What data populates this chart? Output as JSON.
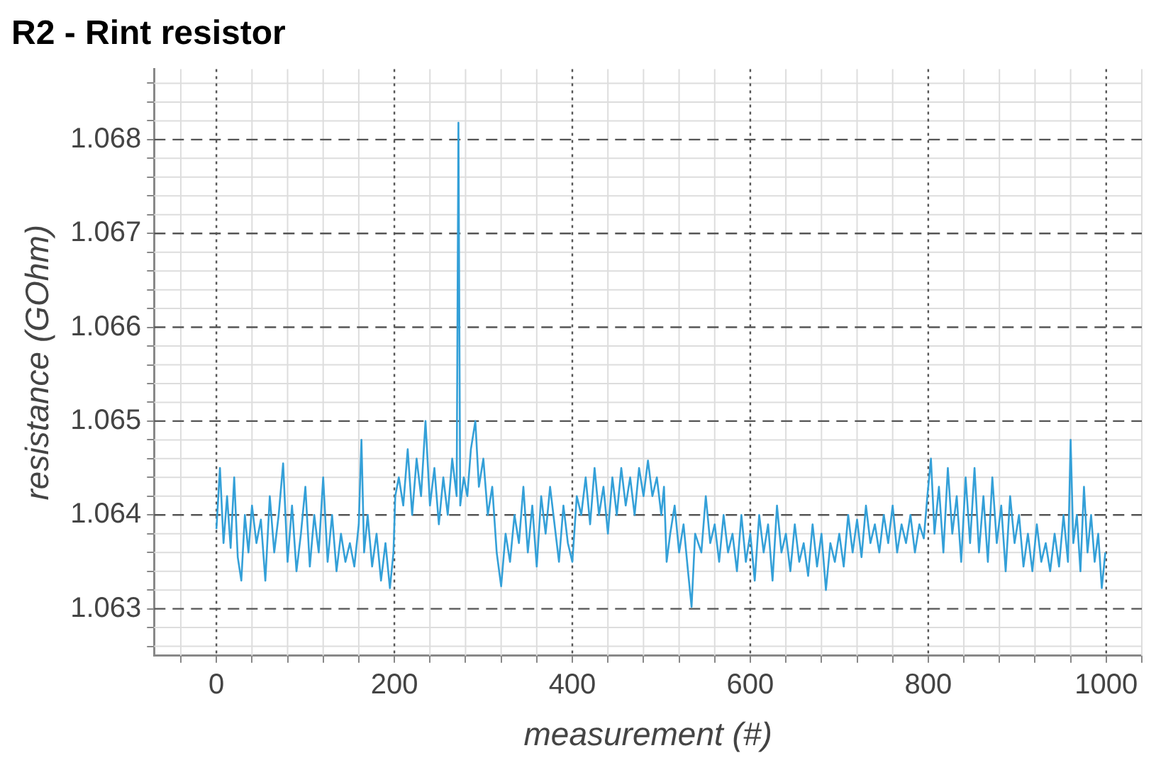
{
  "chart_data": {
    "type": "line",
    "title": "R2 - Rint resistor",
    "xlabel": "measurement (#)",
    "ylabel": "resistance (GOhm)",
    "grid": true,
    "legend": false,
    "marker": "none",
    "line_style": "solid",
    "xlim": [
      -70,
      1040
    ],
    "ylim": [
      1.0625,
      1.06875
    ],
    "xticks": [
      {
        "value": -40,
        "label": null
      },
      0,
      {
        "value": 40,
        "label": null
      },
      {
        "value": 80,
        "label": null
      },
      {
        "value": 120,
        "label": null
      },
      {
        "value": 160,
        "label": null
      },
      200,
      {
        "value": 240,
        "label": null
      },
      {
        "value": 280,
        "label": null
      },
      {
        "value": 320,
        "label": null
      },
      {
        "value": 360,
        "label": null
      },
      400,
      {
        "value": 440,
        "label": null
      },
      {
        "value": 480,
        "label": null
      },
      {
        "value": 520,
        "label": null
      },
      {
        "value": 560,
        "label": null
      },
      600,
      {
        "value": 640,
        "label": null
      },
      {
        "value": 680,
        "label": null
      },
      {
        "value": 720,
        "label": null
      },
      {
        "value": 760,
        "label": null
      },
      800,
      {
        "value": 840,
        "label": null
      },
      {
        "value": 880,
        "label": null
      },
      {
        "value": 920,
        "label": null
      },
      {
        "value": 960,
        "label": null
      },
      1000,
      {
        "value": 1040,
        "label": null
      }
    ],
    "yticks": [
      {
        "value": 1.0626,
        "label": null
      },
      {
        "value": 1.0628,
        "label": null
      },
      1.063,
      {
        "value": 1.0632,
        "label": null
      },
      {
        "value": 1.0634,
        "label": null
      },
      {
        "value": 1.0636,
        "label": null
      },
      {
        "value": 1.0638,
        "label": null
      },
      1.064,
      {
        "value": 1.0642,
        "label": null
      },
      {
        "value": 1.0644,
        "label": null
      },
      {
        "value": 1.0646,
        "label": null
      },
      {
        "value": 1.0648,
        "label": null
      },
      1.065,
      {
        "value": 1.0652,
        "label": null
      },
      {
        "value": 1.0654,
        "label": null
      },
      {
        "value": 1.0656,
        "label": null
      },
      {
        "value": 1.0658,
        "label": null
      },
      1.066,
      {
        "value": 1.0662,
        "label": null
      },
      {
        "value": 1.0664,
        "label": null
      },
      {
        "value": 1.0666,
        "label": null
      },
      {
        "value": 1.0668,
        "label": null
      },
      1.067,
      {
        "value": 1.0672,
        "label": null
      },
      {
        "value": 1.0674,
        "label": null
      },
      {
        "value": 1.0676,
        "label": null
      },
      {
        "value": 1.0678,
        "label": null
      },
      1.068,
      {
        "value": 1.0682,
        "label": null
      },
      {
        "value": 1.0684,
        "label": null
      },
      {
        "value": 1.0686,
        "label": null
      }
    ],
    "series": [
      {
        "color": "#34a0d8",
        "x": [
          0,
          4,
          8,
          12,
          16,
          20,
          24,
          28,
          32,
          36,
          40,
          45,
          50,
          55,
          60,
          65,
          70,
          75,
          80,
          85,
          90,
          95,
          100,
          105,
          110,
          115,
          120,
          125,
          130,
          135,
          140,
          145,
          150,
          155,
          160,
          163,
          166,
          170,
          175,
          180,
          185,
          190,
          195,
          199,
          201,
          205,
          210,
          215,
          220,
          225,
          230,
          235,
          240,
          245,
          250,
          255,
          260,
          265,
          270,
          272,
          274,
          278,
          282,
          286,
          291,
          295,
          300,
          305,
          310,
          315,
          320,
          325,
          330,
          335,
          340,
          345,
          350,
          355,
          360,
          365,
          370,
          375,
          380,
          385,
          390,
          395,
          400,
          405,
          410,
          415,
          420,
          425,
          430,
          435,
          440,
          445,
          450,
          455,
          460,
          465,
          470,
          475,
          480,
          485,
          490,
          495,
          500,
          503,
          506,
          510,
          515,
          520,
          525,
          530,
          534,
          538,
          545,
          550,
          555,
          560,
          565,
          570,
          575,
          580,
          585,
          590,
          595,
          600,
          605,
          610,
          615,
          620,
          625,
          630,
          635,
          640,
          645,
          650,
          655,
          660,
          665,
          670,
          675,
          680,
          685,
          690,
          695,
          700,
          705,
          710,
          715,
          720,
          725,
          730,
          735,
          740,
          745,
          750,
          755,
          760,
          765,
          770,
          775,
          780,
          785,
          790,
          795,
          799,
          803,
          807,
          812,
          817,
          822,
          827,
          832,
          837,
          842,
          847,
          852,
          857,
          862,
          867,
          872,
          877,
          882,
          887,
          892,
          897,
          902,
          907,
          912,
          917,
          922,
          927,
          932,
          937,
          942,
          947,
          952,
          957,
          960,
          963,
          967,
          971,
          975,
          979,
          983,
          987,
          991,
          995,
          999
        ],
        "values": [
          1.06385,
          1.0645,
          1.0637,
          1.0642,
          1.06365,
          1.0644,
          1.06355,
          1.0633,
          1.064,
          1.0636,
          1.0641,
          1.0637,
          1.06395,
          1.0633,
          1.0642,
          1.0636,
          1.064,
          1.06455,
          1.0635,
          1.0641,
          1.0634,
          1.0638,
          1.0643,
          1.06345,
          1.064,
          1.0636,
          1.0644,
          1.0635,
          1.064,
          1.0634,
          1.0638,
          1.0635,
          1.0637,
          1.06345,
          1.0639,
          1.0648,
          1.0636,
          1.064,
          1.06345,
          1.0638,
          1.0633,
          1.0637,
          1.06322,
          1.0636,
          1.0642,
          1.0644,
          1.0641,
          1.0647,
          1.064,
          1.0646,
          1.0642,
          1.065,
          1.0641,
          1.0645,
          1.0639,
          1.0644,
          1.064,
          1.0646,
          1.0642,
          1.06818,
          1.0641,
          1.0644,
          1.0642,
          1.0647,
          1.065,
          1.0643,
          1.0646,
          1.064,
          1.0643,
          1.0636,
          1.06324,
          1.0638,
          1.0635,
          1.064,
          1.0637,
          1.0643,
          1.0636,
          1.0641,
          1.06345,
          1.0642,
          1.0638,
          1.0643,
          1.0639,
          1.0635,
          1.0641,
          1.0637,
          1.0635,
          1.0642,
          1.064,
          1.0644,
          1.0639,
          1.0645,
          1.064,
          1.0643,
          1.0638,
          1.0644,
          1.064,
          1.0645,
          1.0641,
          1.0644,
          1.064,
          1.0645,
          1.0642,
          1.06458,
          1.0642,
          1.0644,
          1.064,
          1.0643,
          1.0635,
          1.0638,
          1.0641,
          1.0636,
          1.0639,
          1.0634,
          1.06302,
          1.0638,
          1.0636,
          1.0642,
          1.0637,
          1.0639,
          1.0635,
          1.064,
          1.0636,
          1.0638,
          1.0634,
          1.064,
          1.0635,
          1.0638,
          1.0633,
          1.064,
          1.0636,
          1.0639,
          1.0633,
          1.0641,
          1.0636,
          1.0638,
          1.0634,
          1.0639,
          1.0635,
          1.0637,
          1.06335,
          1.0639,
          1.06345,
          1.0638,
          1.0632,
          1.0637,
          1.0635,
          1.0638,
          1.06345,
          1.064,
          1.0636,
          1.06395,
          1.06355,
          1.0641,
          1.0637,
          1.0639,
          1.0636,
          1.064,
          1.0637,
          1.0641,
          1.0636,
          1.0639,
          1.0637,
          1.064,
          1.0636,
          1.0639,
          1.06375,
          1.0642,
          1.0646,
          1.0638,
          1.0643,
          1.0636,
          1.0645,
          1.0638,
          1.0642,
          1.0635,
          1.0644,
          1.0637,
          1.0645,
          1.0636,
          1.0642,
          1.0635,
          1.0644,
          1.0637,
          1.0641,
          1.0634,
          1.0642,
          1.0637,
          1.064,
          1.06345,
          1.0638,
          1.0634,
          1.0639,
          1.0635,
          1.0637,
          1.0634,
          1.0638,
          1.06345,
          1.064,
          1.0635,
          1.0648,
          1.0637,
          1.064,
          1.0634,
          1.0643,
          1.0636,
          1.064,
          1.0635,
          1.0638,
          1.06322,
          1.0636
        ]
      }
    ]
  }
}
